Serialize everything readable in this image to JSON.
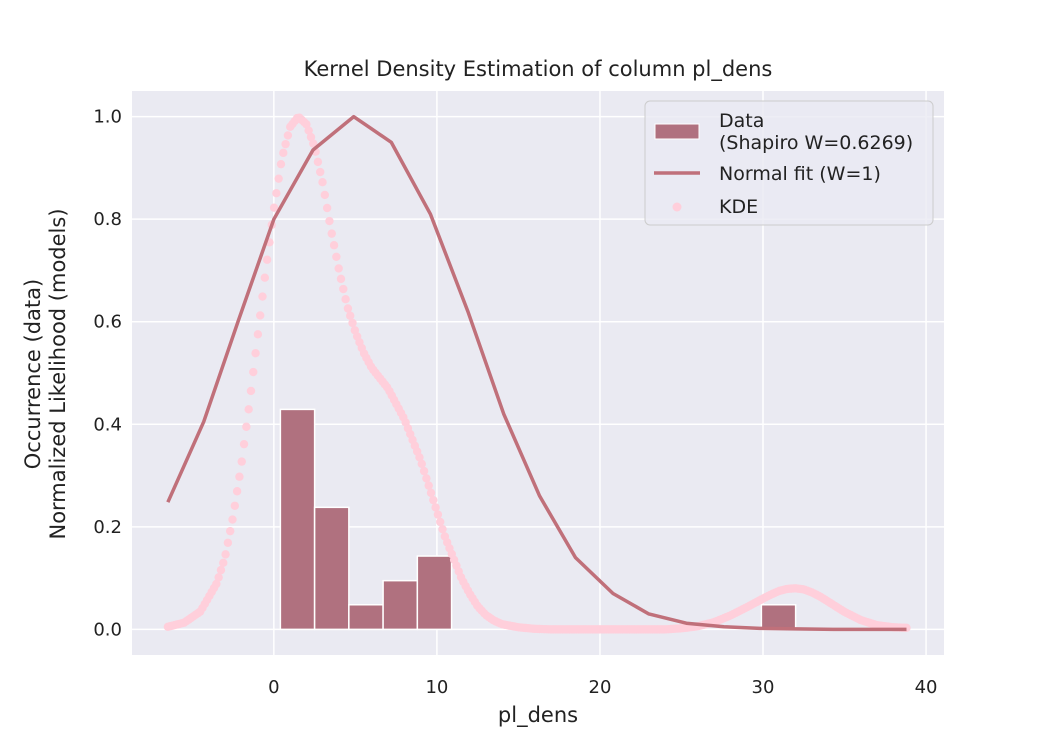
{
  "chart_data": {
    "type": "histogram",
    "title": "Kernel Density Estimation of column pl_dens",
    "xlabel": "pl_dens",
    "ylabel_line1": "Occurrence (data)",
    "ylabel_line2": "Normalized Likelihood (models)",
    "xlim": [
      -8.7,
      41.1
    ],
    "ylim": [
      -0.05,
      1.05
    ],
    "xticks": [
      0,
      10,
      20,
      30,
      40
    ],
    "xtick_labels": [
      "0",
      "10",
      "20",
      "30",
      "40"
    ],
    "yticks": [
      0.0,
      0.2,
      0.4,
      0.6,
      0.8,
      1.0
    ],
    "ytick_labels": [
      "0.0",
      "0.2",
      "0.4",
      "0.6",
      "0.8",
      "1.0"
    ],
    "grid": true,
    "legend_position": "top-right",
    "colors": {
      "background": "#eaeaf2",
      "grid": "#ffffff",
      "bar": "#b0717f",
      "bar_edge": "#ffffff",
      "normal_fit": "#c0707a",
      "kde": "#ffcfdb"
    },
    "histogram": {
      "name": "Data",
      "name_line2": "(Shapiro W=0.6269)",
      "bins": [
        {
          "x0": 0.4,
          "x1": 2.5,
          "value": 0.429
        },
        {
          "x0": 2.5,
          "x1": 4.6,
          "value": 0.238
        },
        {
          "x0": 4.6,
          "x1": 6.7,
          "value": 0.048
        },
        {
          "x0": 6.7,
          "x1": 8.8,
          "value": 0.095
        },
        {
          "x0": 8.8,
          "x1": 10.9,
          "value": 0.143
        },
        {
          "x0": 29.9,
          "x1": 32.0,
          "value": 0.048
        }
      ]
    },
    "normal_fit": {
      "name": "Normal fit (W=1)",
      "x": [
        -6.5,
        -4.3,
        -2.2,
        0.0,
        2.4,
        4.9,
        7.2,
        9.6,
        11.9,
        14.1,
        16.3,
        18.5,
        20.8,
        23.0,
        25.3,
        27.6,
        29.8,
        32.0,
        34.3,
        36.5,
        38.8
      ],
      "y": [
        0.248,
        0.405,
        0.6,
        0.8,
        0.935,
        1.0,
        0.95,
        0.81,
        0.62,
        0.42,
        0.26,
        0.14,
        0.07,
        0.03,
        0.012,
        0.005,
        0.002,
        0.001,
        0.0,
        0.0,
        0.0
      ]
    },
    "kde": {
      "name": "KDE",
      "x": [
        -6.5,
        -5.5,
        -4.5,
        -3.5,
        -3.0,
        -2.5,
        -2.0,
        -1.5,
        -1.0,
        -0.5,
        0.0,
        0.5,
        1.0,
        1.5,
        2.0,
        2.5,
        3.0,
        3.5,
        4.0,
        4.5,
        5.0,
        5.5,
        6.0,
        6.5,
        7.0,
        7.5,
        8.0,
        8.5,
        9.0,
        9.5,
        10.0,
        10.5,
        11.0,
        11.5,
        12.0,
        12.5,
        13.0,
        13.5,
        14.0,
        15.0,
        16.0,
        17.0,
        18.0,
        20.0,
        22.0,
        24.0,
        25.0,
        26.0,
        27.0,
        28.0,
        29.0,
        30.0,
        30.5,
        31.0,
        31.5,
        32.0,
        32.5,
        33.0,
        33.5,
        34.0,
        35.0,
        36.0,
        37.0,
        38.0,
        38.8
      ],
      "y": [
        0.005,
        0.013,
        0.035,
        0.09,
        0.14,
        0.22,
        0.32,
        0.44,
        0.57,
        0.7,
        0.82,
        0.92,
        0.98,
        1.0,
        0.985,
        0.94,
        0.87,
        0.78,
        0.7,
        0.63,
        0.58,
        0.54,
        0.51,
        0.49,
        0.47,
        0.44,
        0.41,
        0.37,
        0.33,
        0.28,
        0.23,
        0.18,
        0.14,
        0.1,
        0.07,
        0.045,
        0.028,
        0.017,
        0.01,
        0.004,
        0.001,
        0.0,
        0.0,
        0.0,
        0.0,
        0.0,
        0.002,
        0.006,
        0.014,
        0.027,
        0.043,
        0.06,
        0.068,
        0.075,
        0.079,
        0.08,
        0.078,
        0.072,
        0.064,
        0.054,
        0.034,
        0.018,
        0.008,
        0.004,
        0.003
      ]
    }
  }
}
